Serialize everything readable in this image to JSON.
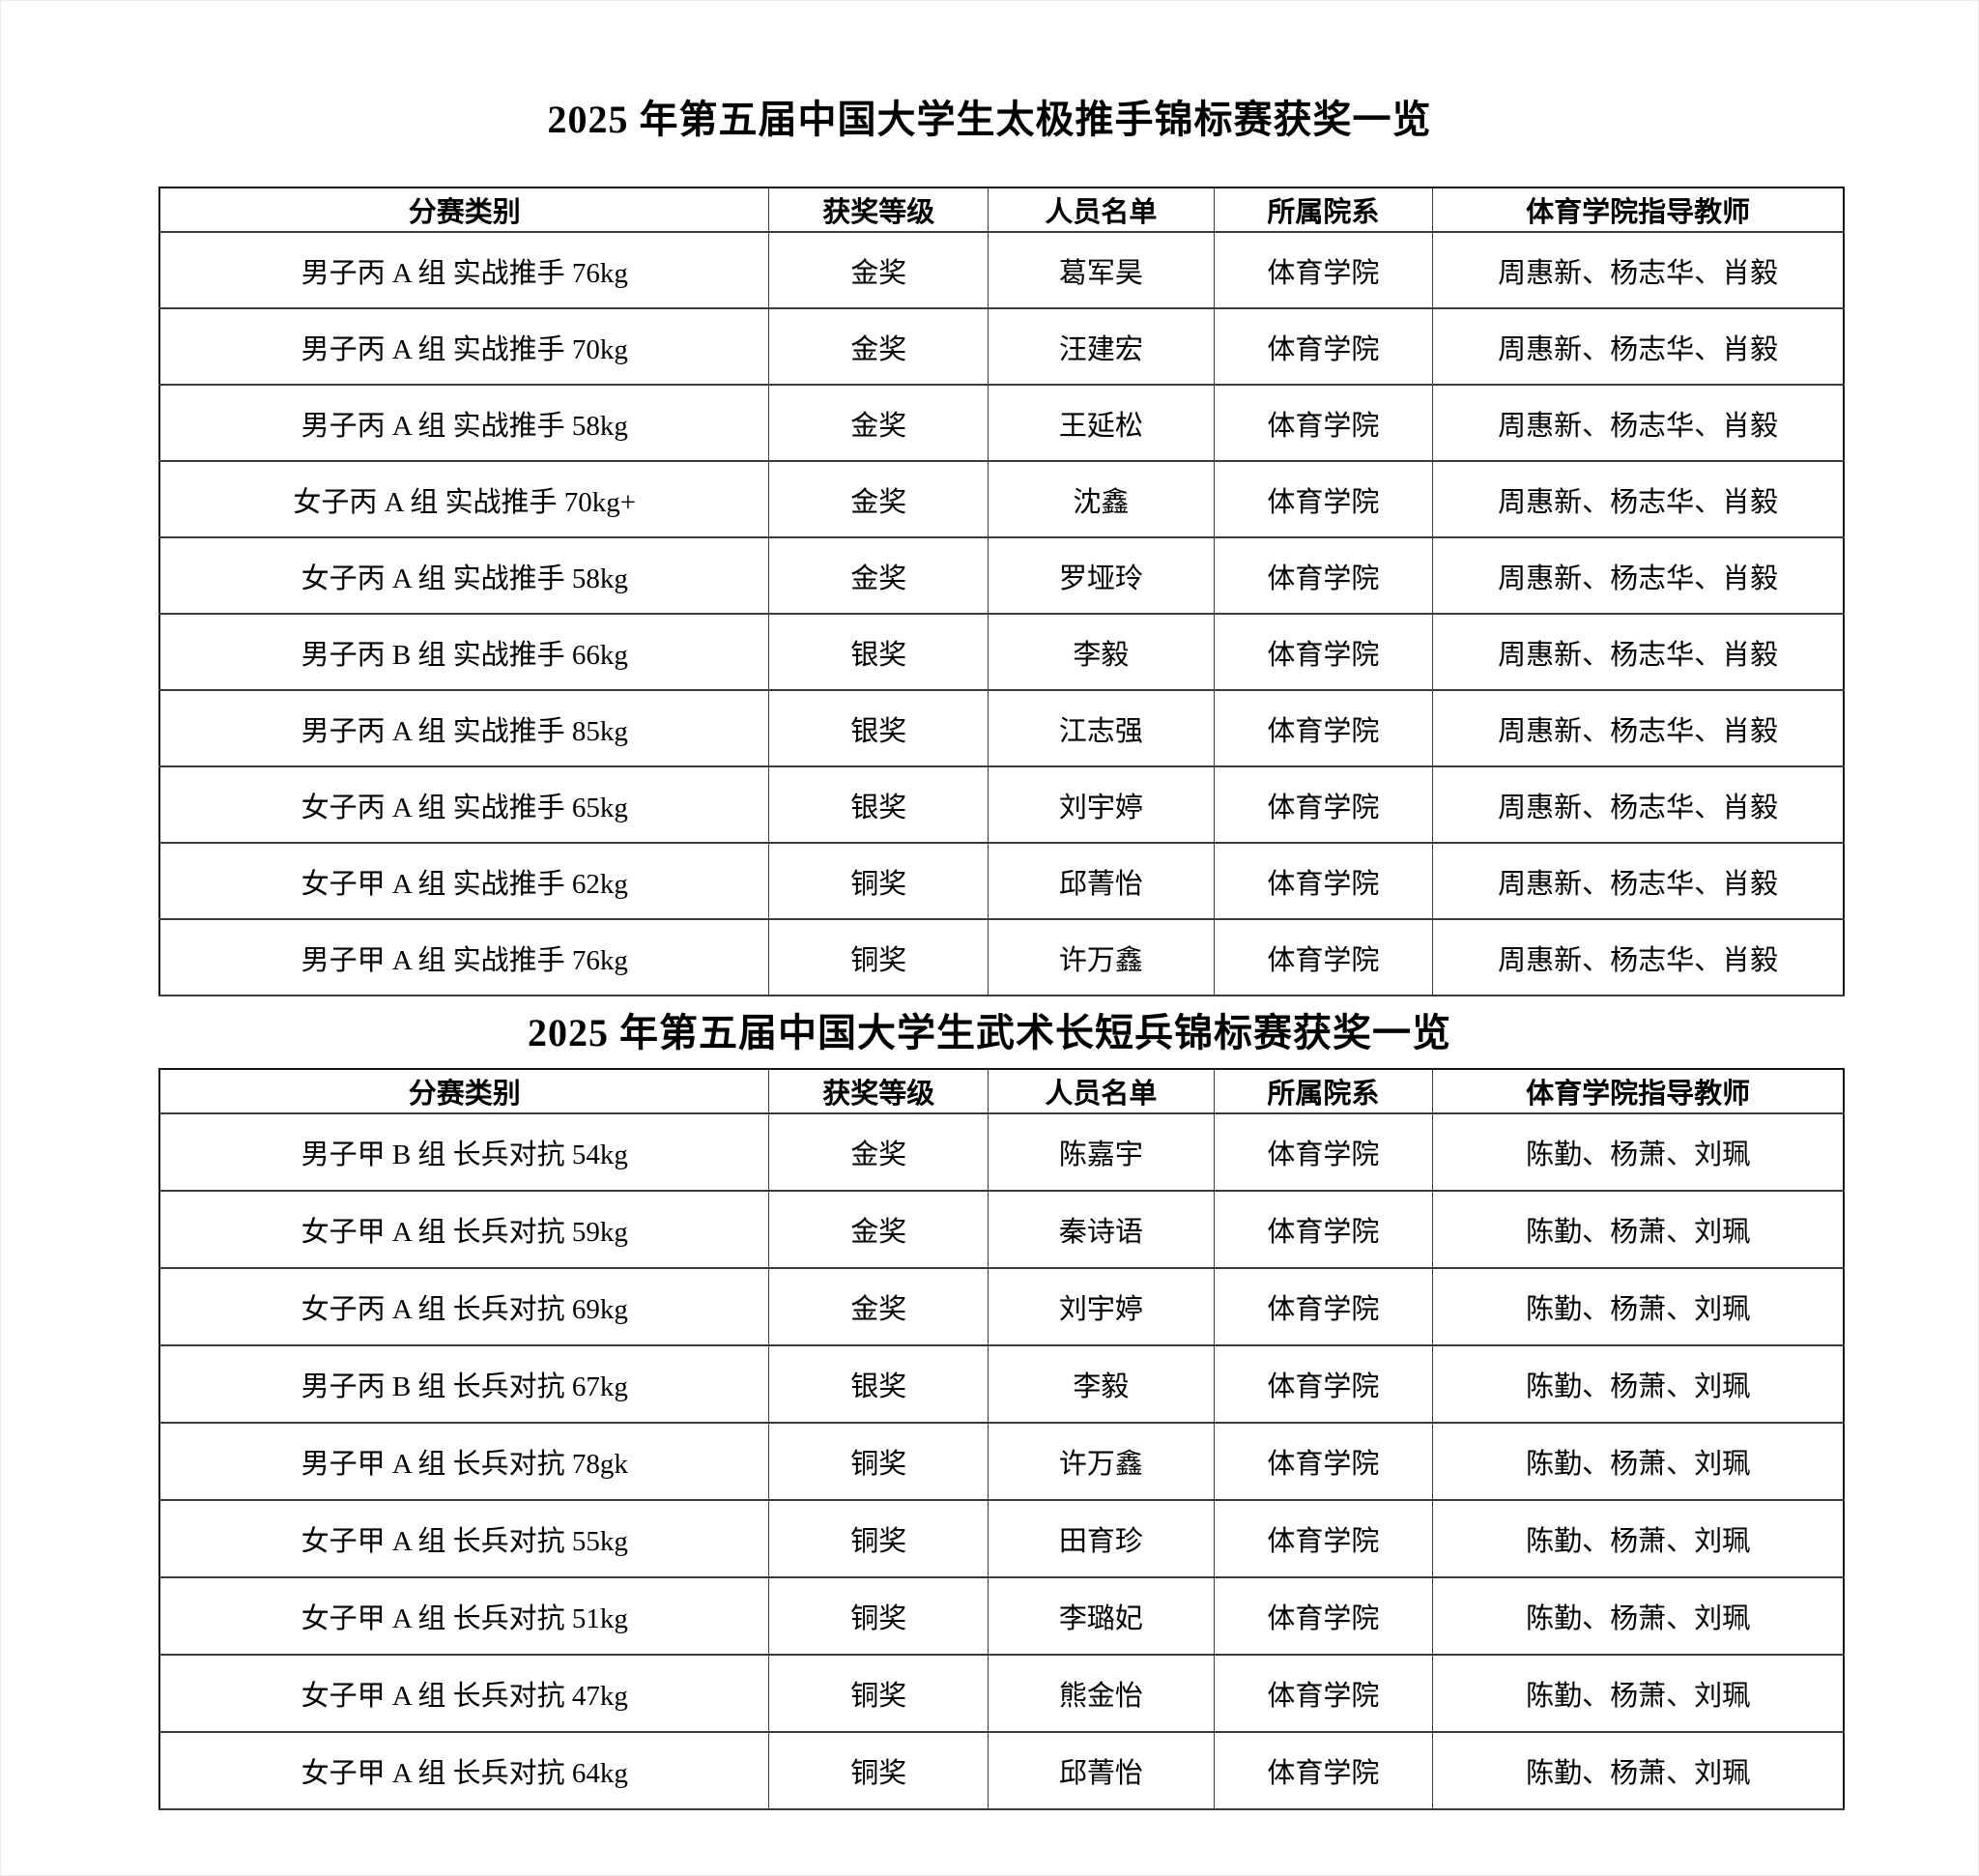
{
  "colors": {
    "background": "#ffffff",
    "text": "#000000",
    "table_border": "#141414",
    "grid_line": "#3c3c3c"
  },
  "section1": {
    "title": "2025 年第五届中国大学生太极推手锦标赛获奖一览",
    "headers": [
      "分赛类别",
      "获奖等级",
      "人员名单",
      "所属院系",
      "体育学院指导教师"
    ],
    "rows": [
      {
        "category": "男子丙 A 组 实战推手 76kg",
        "award": "金奖",
        "name": "葛军昊",
        "department": "体育学院",
        "teachers": "周惠新、杨志华、肖毅"
      },
      {
        "category": "男子丙 A 组 实战推手 70kg",
        "award": "金奖",
        "name": "汪建宏",
        "department": "体育学院",
        "teachers": "周惠新、杨志华、肖毅"
      },
      {
        "category": "男子丙 A 组 实战推手 58kg",
        "award": "金奖",
        "name": "王延松",
        "department": "体育学院",
        "teachers": "周惠新、杨志华、肖毅"
      },
      {
        "category": "女子丙 A 组 实战推手 70kg+",
        "award": "金奖",
        "name": "沈鑫",
        "department": "体育学院",
        "teachers": "周惠新、杨志华、肖毅"
      },
      {
        "category": "女子丙 A 组 实战推手 58kg",
        "award": "金奖",
        "name": "罗垭玲",
        "department": "体育学院",
        "teachers": "周惠新、杨志华、肖毅"
      },
      {
        "category": "男子丙 B 组 实战推手 66kg",
        "award": "银奖",
        "name": "李毅",
        "department": "体育学院",
        "teachers": "周惠新、杨志华、肖毅"
      },
      {
        "category": "男子丙 A 组 实战推手 85kg",
        "award": "银奖",
        "name": "江志强",
        "department": "体育学院",
        "teachers": "周惠新、杨志华、肖毅"
      },
      {
        "category": "女子丙 A 组 实战推手 65kg",
        "award": "银奖",
        "name": "刘宇婷",
        "department": "体育学院",
        "teachers": "周惠新、杨志华、肖毅"
      },
      {
        "category": "女子甲 A 组 实战推手 62kg",
        "award": "铜奖",
        "name": "邱菁怡",
        "department": "体育学院",
        "teachers": "周惠新、杨志华、肖毅"
      },
      {
        "category": "男子甲 A 组 实战推手 76kg",
        "award": "铜奖",
        "name": "许万鑫",
        "department": "体育学院",
        "teachers": "周惠新、杨志华、肖毅"
      }
    ]
  },
  "section2": {
    "title": "2025 年第五届中国大学生武术长短兵锦标赛获奖一览",
    "headers": [
      "分赛类别",
      "获奖等级",
      "人员名单",
      "所属院系",
      "体育学院指导教师"
    ],
    "rows": [
      {
        "category": "男子甲 B 组 长兵对抗 54kg",
        "award": "金奖",
        "name": "陈嘉宇",
        "department": "体育学院",
        "teachers": "陈勤、杨萧、刘珮"
      },
      {
        "category": "女子甲 A 组 长兵对抗 59kg",
        "award": "金奖",
        "name": "秦诗语",
        "department": "体育学院",
        "teachers": "陈勤、杨萧、刘珮"
      },
      {
        "category": "女子丙 A 组 长兵对抗 69kg",
        "award": "金奖",
        "name": "刘宇婷",
        "department": "体育学院",
        "teachers": "陈勤、杨萧、刘珮"
      },
      {
        "category": "男子丙 B 组 长兵对抗 67kg",
        "award": "银奖",
        "name": "李毅",
        "department": "体育学院",
        "teachers": "陈勤、杨萧、刘珮"
      },
      {
        "category": "男子甲 A 组 长兵对抗 78gk",
        "award": "铜奖",
        "name": "许万鑫",
        "department": "体育学院",
        "teachers": "陈勤、杨萧、刘珮"
      },
      {
        "category": "女子甲 A 组 长兵对抗 55kg",
        "award": "铜奖",
        "name": "田育珍",
        "department": "体育学院",
        "teachers": "陈勤、杨萧、刘珮"
      },
      {
        "category": "女子甲 A 组 长兵对抗 51kg",
        "award": "铜奖",
        "name": "李璐妃",
        "department": "体育学院",
        "teachers": "陈勤、杨萧、刘珮"
      },
      {
        "category": "女子甲 A 组 长兵对抗 47kg",
        "award": "铜奖",
        "name": "熊金怡",
        "department": "体育学院",
        "teachers": "陈勤、杨萧、刘珮"
      },
      {
        "category": "女子甲 A 组 长兵对抗 64kg",
        "award": "铜奖",
        "name": "邱菁怡",
        "department": "体育学院",
        "teachers": "陈勤、杨萧、刘珮"
      }
    ]
  }
}
